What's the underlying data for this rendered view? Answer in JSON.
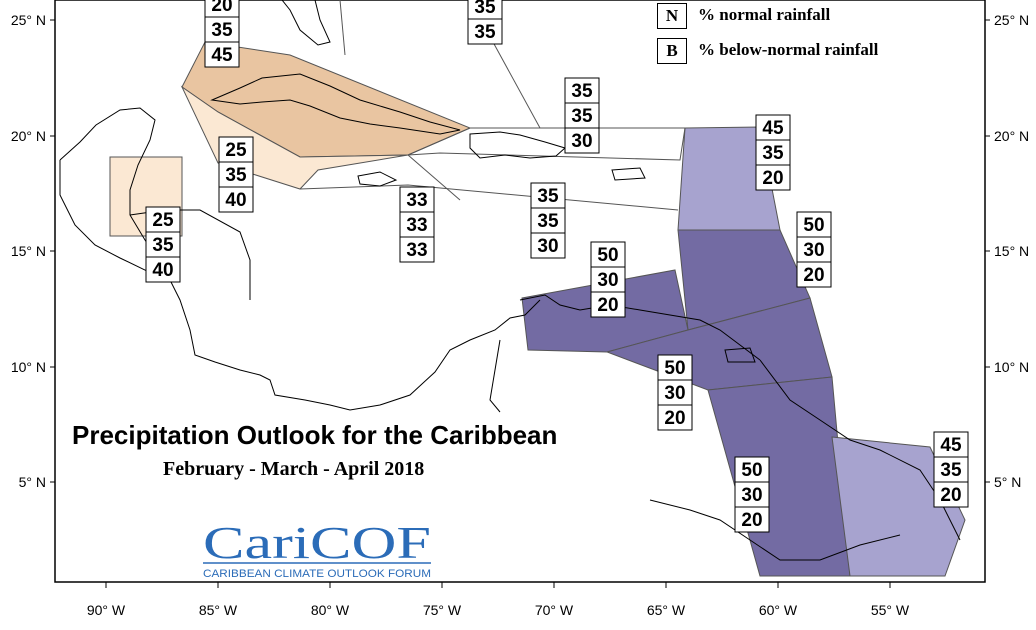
{
  "title": "Precipitation Outlook for the Caribbean",
  "subtitle": "February - March - April 2018",
  "legend": [
    {
      "key": "N",
      "text": "% normal rainfall"
    },
    {
      "key": "B",
      "text": "% below-normal rainfall"
    }
  ],
  "logo": {
    "line1": "CariCOF",
    "line2": "CARIBBEAN CLIMATE OUTLOOK FORUM"
  },
  "axes": {
    "lat_labels": [
      "25° N",
      "20° N",
      "15° N",
      "10° N",
      "5° N"
    ],
    "lon_labels": [
      "90° W",
      "85° W",
      "80° W",
      "75° W",
      "70° W",
      "65° W",
      "60° W",
      "55° W"
    ]
  },
  "colors": {
    "light_orange": "#fbe8d3",
    "orange": "#e9c5a1",
    "light_purple": "#a7a3cf",
    "purple": "#736ba3",
    "white_zone": "#ffffff"
  },
  "probability_boxes": [
    {
      "values": [
        "20",
        "35",
        "45"
      ]
    },
    {
      "values": [
        "35",
        "35"
      ]
    },
    {
      "values": [
        "35",
        "35",
        "30"
      ]
    },
    {
      "values": [
        "45",
        "35",
        "20"
      ]
    },
    {
      "values": [
        "25",
        "35",
        "40"
      ]
    },
    {
      "values": [
        "33",
        "33",
        "33"
      ]
    },
    {
      "values": [
        "35",
        "35",
        "30"
      ]
    },
    {
      "values": [
        "25",
        "35",
        "40"
      ]
    },
    {
      "values": [
        "50",
        "30",
        "20"
      ]
    },
    {
      "values": [
        "50",
        "30",
        "20"
      ]
    },
    {
      "values": [
        "50",
        "30",
        "20"
      ]
    },
    {
      "values": [
        "50",
        "30",
        "20"
      ]
    },
    {
      "values": [
        "45",
        "35",
        "20"
      ]
    }
  ]
}
